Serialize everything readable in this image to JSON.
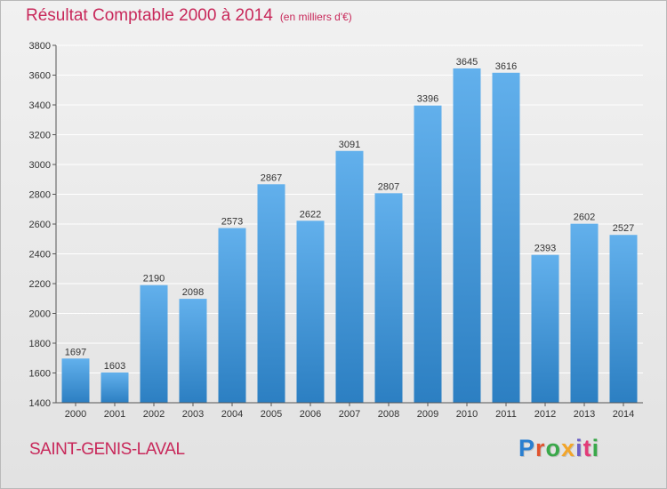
{
  "header": {
    "title": "Résultat Comptable 2000 à 2014",
    "subtitle": "(en milliers d'€)"
  },
  "footer": {
    "city": "SAINT-GENIS-LAVAL",
    "logo": "Proxiti",
    "logo_colors": [
      "#2a7fd0",
      "#e0542e",
      "#3aa84a",
      "#f2a52a",
      "#6b5fc7",
      "#e23b78",
      "#3aa84a"
    ]
  },
  "colors": {
    "bar_top": "#62b0ec",
    "bar_bottom": "#2c7fc2",
    "accent": "#c8285a",
    "grid": "#ffffff"
  },
  "chart_data": {
    "type": "bar",
    "title": "Résultat Comptable 2000 à 2014",
    "subtitle": "(en milliers d'€)",
    "xlabel": "",
    "ylabel": "",
    "categories": [
      "2000",
      "2001",
      "2002",
      "2003",
      "2004",
      "2005",
      "2006",
      "2007",
      "2008",
      "2009",
      "2010",
      "2011",
      "2012",
      "2013",
      "2014"
    ],
    "values": [
      1697,
      1603,
      2190,
      2098,
      2573,
      2867,
      2622,
      3091,
      2807,
      3396,
      3645,
      3616,
      2393,
      2602,
      2527
    ],
    "ylim": [
      1400,
      3800
    ],
    "yticks": [
      1400,
      1600,
      1800,
      2000,
      2200,
      2400,
      2600,
      2800,
      3000,
      3200,
      3400,
      3600,
      3800
    ],
    "grid": true,
    "legend": "none"
  }
}
